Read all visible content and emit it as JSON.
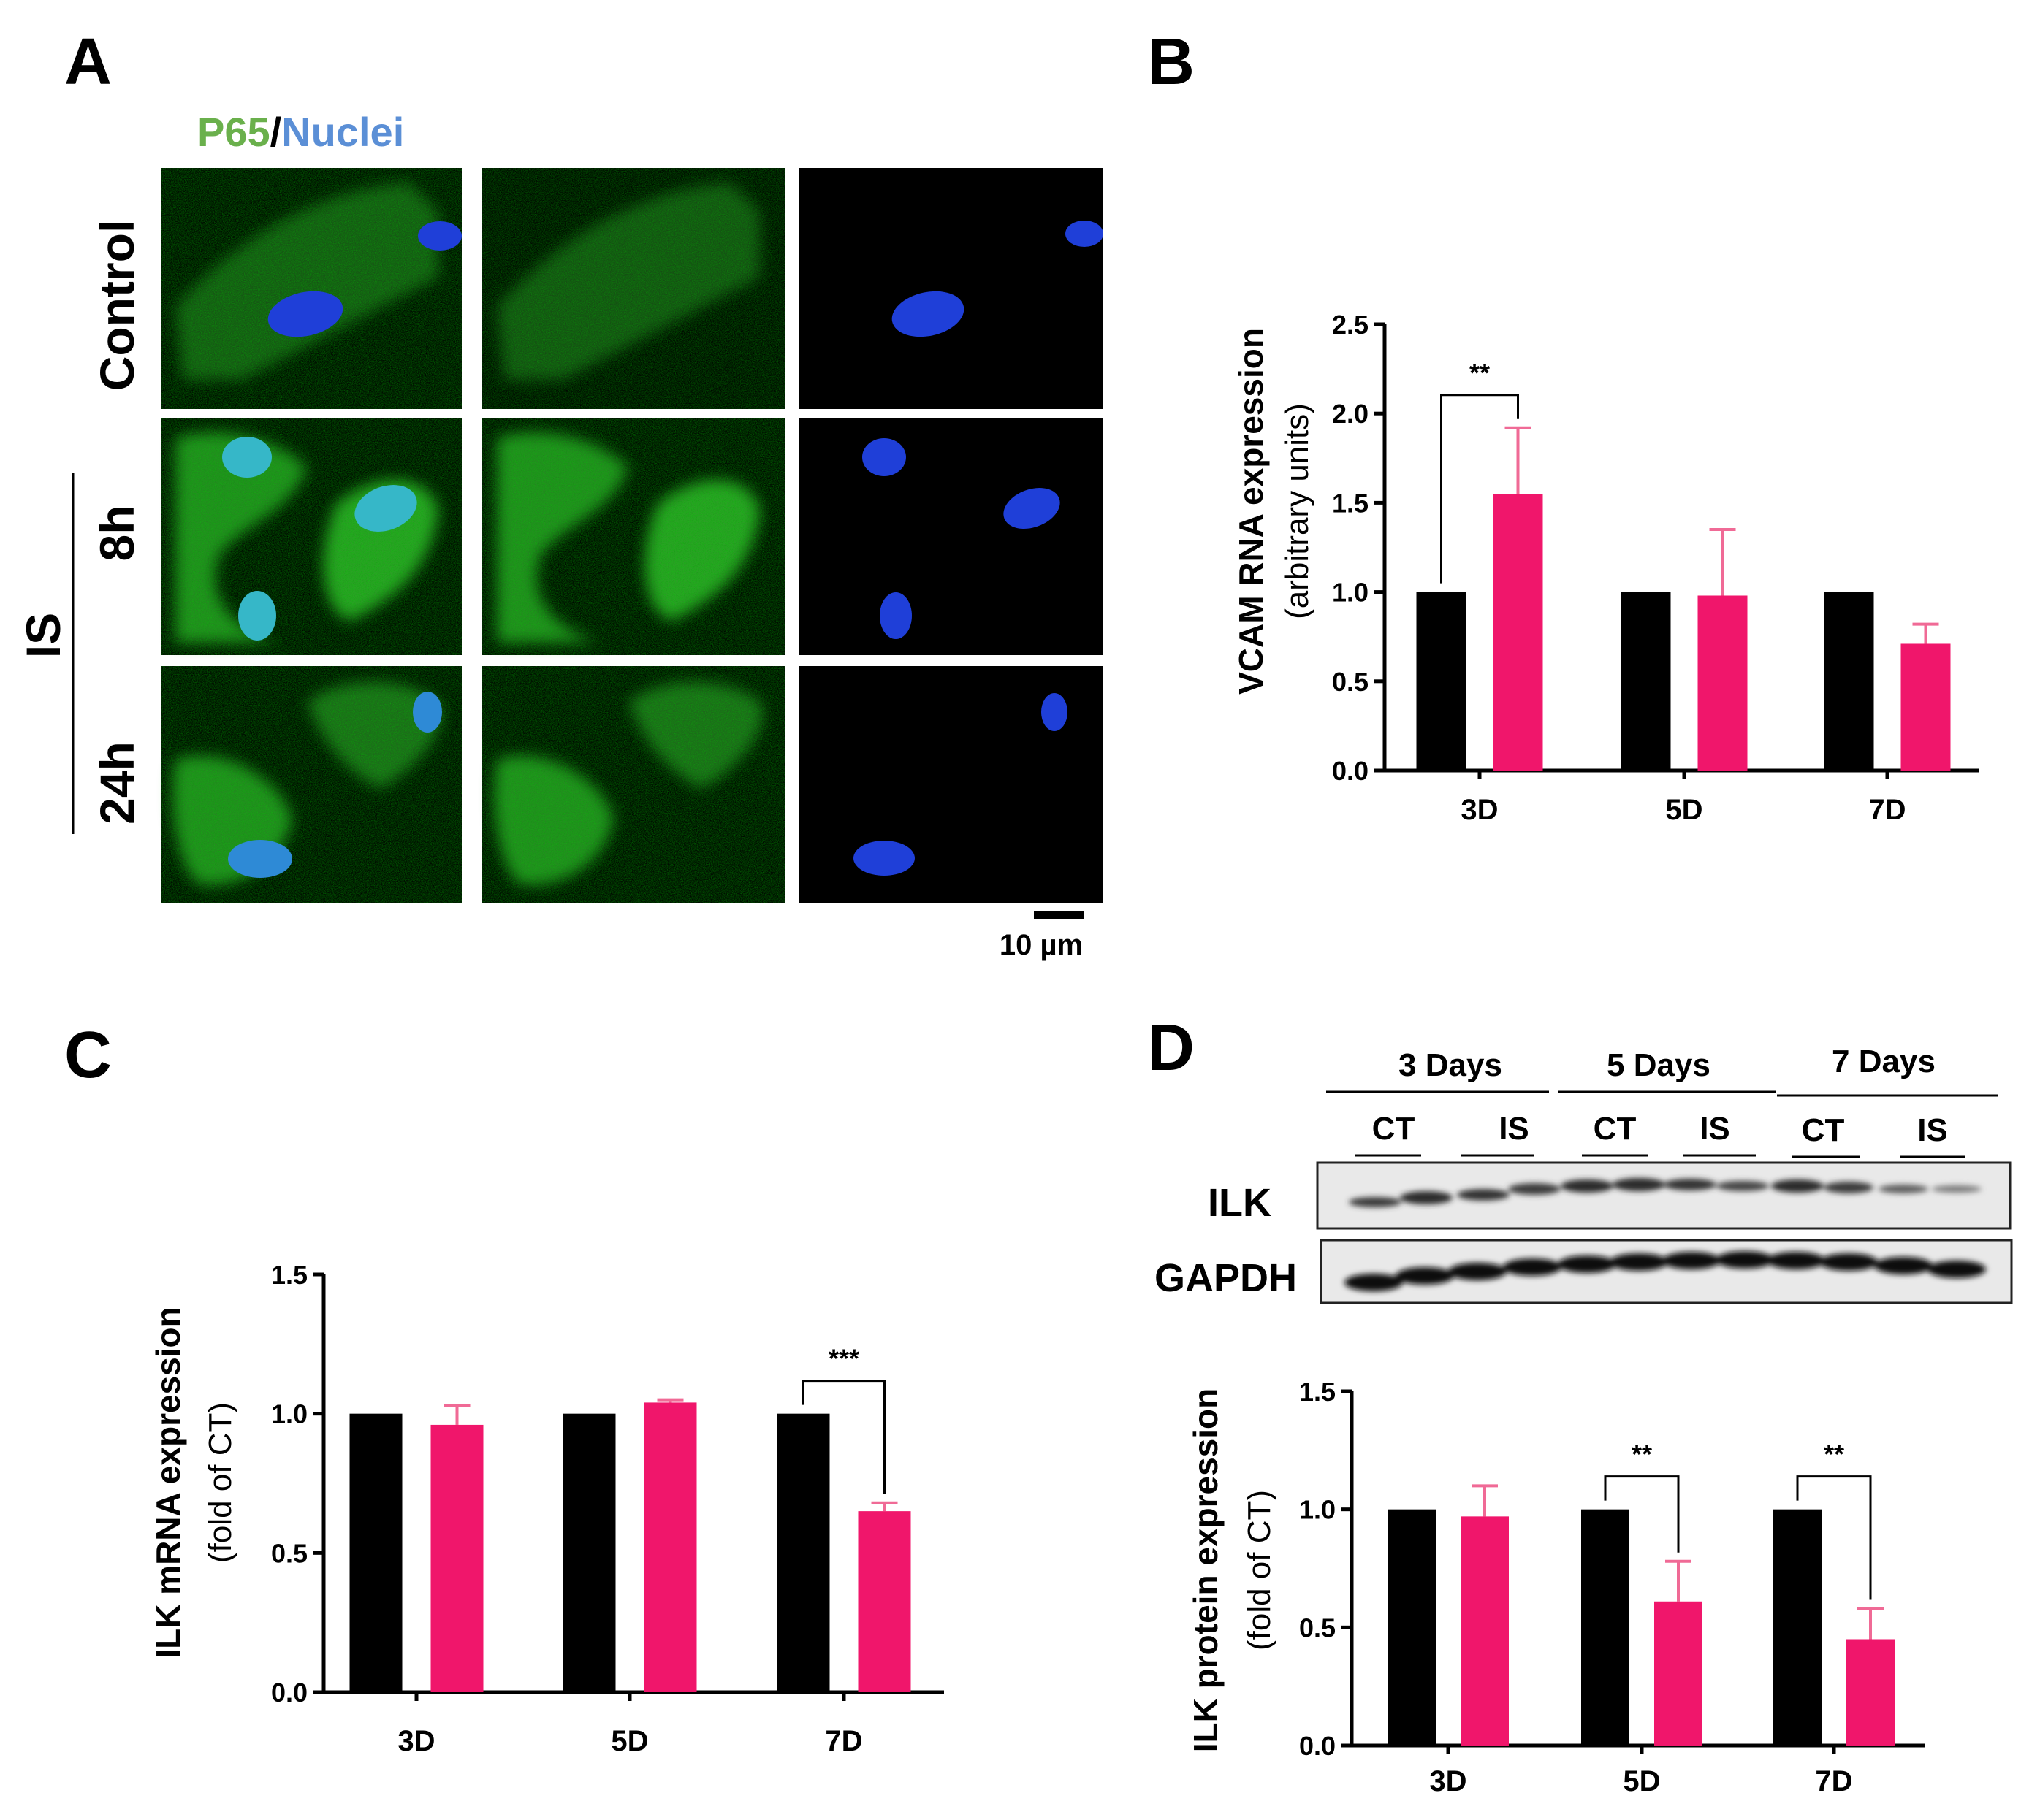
{
  "panels": {
    "A": "A",
    "B": "B",
    "C": "C",
    "D": "D"
  },
  "micrograph": {
    "legend_p65": "P65",
    "legend_sep": "/",
    "legend_nuclei": "Nuclei",
    "legend_p65_color": "#6ab04c",
    "legend_nuclei_color": "#5b8fd6",
    "row_control": "Control",
    "row_8h": "8h",
    "row_24h": "24h",
    "group_is": "IS",
    "scale_bar": "10 µm"
  },
  "colors": {
    "control": "#000000",
    "is": "#f0166b",
    "error": "#f06a96"
  },
  "western": {
    "groups": [
      "3 Days",
      "5 Days",
      "7 Days"
    ],
    "lanes": [
      "CT",
      "IS",
      "CT",
      "IS",
      "CT",
      "IS"
    ],
    "ilk_label": "ILK",
    "gapdh_label": "GAPDH"
  },
  "chart_data": [
    {
      "id": "B",
      "type": "bar",
      "categories": [
        "3D",
        "5D",
        "7D"
      ],
      "series": [
        {
          "values": [
            1.0,
            1.0,
            1.0
          ],
          "errors": [
            0,
            0,
            0
          ]
        },
        {
          "values": [
            1.55,
            0.98,
            0.71
          ],
          "errors": [
            0.37,
            0.37,
            0.11
          ]
        }
      ],
      "ylabel": "VCAM RNA expression",
      "ylabel2": "(arbitrary units)",
      "ylim": [
        0,
        2.5
      ],
      "yticks": [
        "0.0",
        "0.5",
        "1.0",
        "1.5",
        "2.0",
        "2.5"
      ],
      "significance": [
        {
          "category": "3D",
          "label": "**"
        }
      ]
    },
    {
      "id": "C",
      "type": "bar",
      "categories": [
        "3D",
        "5D",
        "7D"
      ],
      "series": [
        {
          "values": [
            1.0,
            1.0,
            1.0
          ],
          "errors": [
            0,
            0,
            0
          ]
        },
        {
          "values": [
            0.96,
            1.04,
            0.65
          ],
          "errors": [
            0.07,
            0.01,
            0.03
          ]
        }
      ],
      "ylabel": "ILK mRNA expression",
      "ylabel2": "(fold of CT)",
      "ylim": [
        0,
        1.5
      ],
      "yticks": [
        "0.0",
        "0.5",
        "1.0",
        "1.5"
      ],
      "significance": [
        {
          "category": "7D",
          "label": "***"
        }
      ]
    },
    {
      "id": "D",
      "type": "bar",
      "categories": [
        "3D",
        "5D",
        "7D"
      ],
      "series": [
        {
          "values": [
            1.0,
            1.0,
            1.0
          ],
          "errors": [
            0,
            0,
            0
          ]
        },
        {
          "values": [
            0.97,
            0.61,
            0.45
          ],
          "errors": [
            0.13,
            0.17,
            0.13
          ]
        }
      ],
      "ylabel": "ILK protein expression",
      "ylabel2": "(fold of CT)",
      "ylim": [
        0,
        1.5
      ],
      "yticks": [
        "0.0",
        "0.5",
        "1.0",
        "1.5"
      ],
      "significance": [
        {
          "category": "5D",
          "label": "**"
        },
        {
          "category": "7D",
          "label": "**"
        }
      ]
    }
  ]
}
